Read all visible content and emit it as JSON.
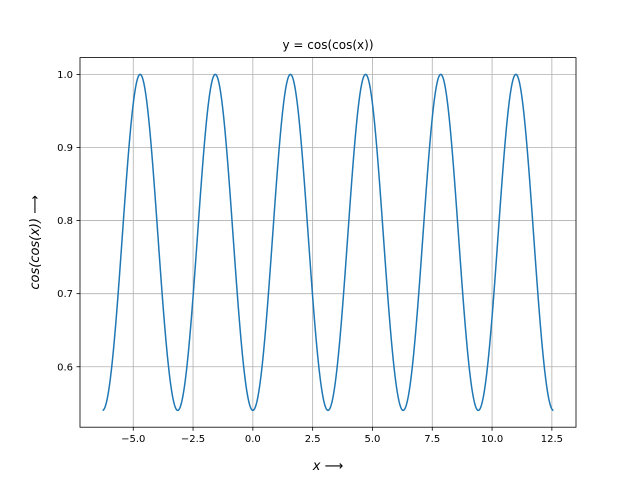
{
  "chart_data": {
    "type": "line",
    "title": "y = cos(cos(x))",
    "xlabel": "x ⟶",
    "ylabel": "cos(cos(x)) ⟶",
    "function": "cos(cos(x))",
    "x_range": [
      -6.283,
      12.566
    ],
    "xlim": [
      -7.226,
      13.509
    ],
    "ylim": [
      0.5173,
      1.023
    ],
    "grid": true,
    "x_ticks": [
      -5.0,
      -2.5,
      0.0,
      2.5,
      5.0,
      7.5,
      10.0,
      12.5
    ],
    "x_tick_labels": [
      "−5.0",
      "−2.5",
      "0.0",
      "2.5",
      "5.0",
      "7.5",
      "10.0",
      "12.5"
    ],
    "y_ticks": [
      0.6,
      0.7,
      0.8,
      0.9,
      1.0
    ],
    "y_tick_labels": [
      "0.6",
      "0.7",
      "0.8",
      "0.9",
      "1.0"
    ],
    "series": [
      {
        "color": "#1f77b4",
        "x": [
          -6.283,
          -5.498,
          -4.712,
          -3.927,
          -3.142,
          -2.356,
          -1.571,
          -0.785,
          0.0,
          0.785,
          1.571,
          2.356,
          3.142,
          3.927,
          4.712,
          5.498,
          6.283,
          7.069,
          7.854,
          8.639,
          9.425,
          10.21,
          10.996,
          11.781,
          12.566
        ],
        "y": [
          0.5403,
          0.7602,
          1.0,
          0.7602,
          0.5403,
          0.7602,
          1.0,
          0.7602,
          0.5403,
          0.7602,
          1.0,
          0.7602,
          0.5403,
          0.7602,
          1.0,
          0.7602,
          0.5403,
          0.7602,
          1.0,
          0.7602,
          0.5403,
          0.7602,
          1.0,
          0.7602,
          0.5403
        ]
      }
    ]
  }
}
